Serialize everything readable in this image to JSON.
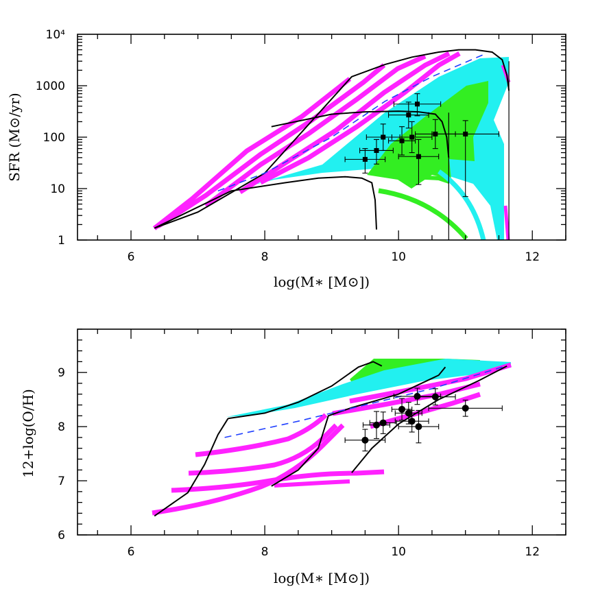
{
  "colors": {
    "magenta": "#ff22ff",
    "cyan": "#22f0f0",
    "green": "#33ee22",
    "blue_dash": "#1f3fff",
    "black": "#000000"
  },
  "chart_data": [
    {
      "type": "scatter",
      "title": "",
      "xlabel": "log(M∗ [M⊙])",
      "ylabel": "SFR (M⊙/yr)",
      "xlim": [
        5.2,
        12.5
      ],
      "ylim": [
        1,
        10000
      ],
      "yscale": "log",
      "xticks": [
        6,
        8,
        10,
        12
      ],
      "xtick_labels": [
        "6",
        "8",
        "10",
        "12"
      ],
      "yticks": [
        1,
        10,
        100,
        1000,
        10000
      ],
      "ytick_labels": [
        "1",
        "10",
        "100",
        "1000",
        "10⁴"
      ],
      "points": [
        {
          "x": 9.5,
          "y": 37,
          "xerr": 0.3,
          "ylo": 20,
          "yhi": 60
        },
        {
          "x": 9.67,
          "y": 55,
          "xerr": 0.25,
          "ylo": 30,
          "yhi": 90
        },
        {
          "x": 9.77,
          "y": 100,
          "xerr": 0.25,
          "ylo": 55,
          "yhi": 180
        },
        {
          "x": 10.05,
          "y": 85,
          "xerr": 0.2,
          "ylo": 45,
          "yhi": 160
        },
        {
          "x": 10.15,
          "y": 270,
          "xerr": 0.3,
          "ylo": 150,
          "yhi": 480
        },
        {
          "x": 10.2,
          "y": 100,
          "xerr": 0.3,
          "ylo": 50,
          "yhi": 200
        },
        {
          "x": 10.28,
          "y": 440,
          "xerr": 0.35,
          "ylo": 260,
          "yhi": 700
        },
        {
          "x": 10.3,
          "y": 42,
          "xerr": 0.3,
          "ylo": 12,
          "yhi": 90
        },
        {
          "x": 10.55,
          "y": 115,
          "xerr": 0.3,
          "ylo": 60,
          "yhi": 220
        },
        {
          "x": 11.0,
          "y": 115,
          "xerr": 0.5,
          "ylo": 7,
          "yhi": 210
        }
      ],
      "series": [
        {
          "name": "black envelope upper",
          "color": "#000000",
          "style": "solid",
          "x": [
            6.35,
            7.0,
            8.0,
            9.3,
            9.8,
            10.2,
            10.6,
            10.9,
            11.15,
            11.4,
            11.55,
            11.62,
            11.65
          ],
          "y": [
            1.7,
            3.5,
            20,
            1500,
            2600,
            3600,
            4500,
            5000,
            5000,
            4500,
            3200,
            1600,
            800
          ]
        },
        {
          "name": "black envelope middle",
          "color": "#000000",
          "style": "solid",
          "x": [
            8.1,
            9.0,
            9.5,
            10.0,
            10.3,
            10.55,
            10.65,
            10.72,
            10.75
          ],
          "y": [
            160,
            280,
            310,
            320,
            310,
            280,
            200,
            100,
            40
          ]
        },
        {
          "name": "black envelope lower",
          "color": "#000000",
          "style": "solid",
          "x": [
            6.35,
            7.5,
            8.3,
            8.8,
            9.2,
            9.45,
            9.6,
            9.65,
            9.67
          ],
          "y": [
            1.7,
            9,
            13,
            16,
            17,
            16,
            13,
            6,
            1.6
          ]
        },
        {
          "name": "model blue dashed",
          "color": "#1f3fff",
          "style": "dashed",
          "x": [
            7.3,
            8.0,
            9.0,
            9.8,
            10.5,
            11.3
          ],
          "y": [
            9,
            20,
            100,
            500,
            1500,
            4200
          ]
        }
      ]
    },
    {
      "type": "scatter",
      "title": "",
      "xlabel": "log(M∗ [M⊙])",
      "ylabel": "12+log(O/H)",
      "xlim": [
        5.2,
        12.5
      ],
      "ylim": [
        6.0,
        9.8
      ],
      "yscale": "linear",
      "xticks": [
        6,
        8,
        10,
        12
      ],
      "xtick_labels": [
        "6",
        "8",
        "10",
        "12"
      ],
      "yticks": [
        6,
        7,
        8,
        9
      ],
      "ytick_labels": [
        "6",
        "7",
        "8",
        "9"
      ],
      "points": [
        {
          "x": 9.5,
          "y": 7.75,
          "xerr": 0.3,
          "yerr": 0.2
        },
        {
          "x": 9.67,
          "y": 8.03,
          "xerr": 0.2,
          "yerr": 0.25
        },
        {
          "x": 9.77,
          "y": 8.07,
          "xerr": 0.2,
          "yerr": 0.2
        },
        {
          "x": 10.05,
          "y": 8.32,
          "xerr": 0.15,
          "yerr": 0.2
        },
        {
          "x": 10.15,
          "y": 8.25,
          "xerr": 0.2,
          "yerr": 0.2
        },
        {
          "x": 10.2,
          "y": 8.1,
          "xerr": 0.25,
          "yerr": 0.2
        },
        {
          "x": 10.28,
          "y": 8.56,
          "xerr": 0.35,
          "yerr": 0.15
        },
        {
          "x": 10.3,
          "y": 8.0,
          "xerr": 0.3,
          "yerr": 0.3
        },
        {
          "x": 10.55,
          "y": 8.55,
          "xerr": 0.3,
          "yerr": 0.15
        },
        {
          "x": 11.0,
          "y": 8.34,
          "xerr": 0.55,
          "yerr": 0.15
        }
      ],
      "series": [
        {
          "name": "black track left",
          "color": "#000000",
          "style": "solid",
          "x": [
            6.35,
            6.85,
            7.1,
            7.3,
            7.45
          ],
          "y": [
            6.35,
            6.78,
            7.3,
            7.85,
            8.15
          ]
        },
        {
          "name": "black track upper",
          "color": "#000000",
          "style": "solid",
          "x": [
            7.45,
            8.0,
            8.5,
            9.0,
            9.4,
            9.62,
            9.75
          ],
          "y": [
            8.15,
            8.25,
            8.45,
            8.75,
            9.1,
            9.2,
            9.12
          ]
        },
        {
          "name": "black track middle",
          "color": "#000000",
          "style": "solid",
          "x": [
            8.1,
            8.5,
            8.8,
            8.95,
            9.3,
            10.0,
            10.6,
            10.7
          ],
          "y": [
            6.9,
            7.2,
            7.6,
            8.2,
            8.35,
            8.6,
            8.95,
            9.1
          ]
        },
        {
          "name": "black track right",
          "color": "#000000",
          "style": "solid",
          "x": [
            9.3,
            9.6,
            10.0,
            10.6,
            11.2,
            11.62
          ],
          "y": [
            7.15,
            7.6,
            8.05,
            8.5,
            8.85,
            9.12
          ]
        },
        {
          "name": "model blue dashed",
          "color": "#1f3fff",
          "style": "dashed",
          "x": [
            7.4,
            8.5,
            9.5,
            10.5,
            11.6
          ],
          "y": [
            7.8,
            8.1,
            8.4,
            8.7,
            9.12
          ]
        }
      ]
    }
  ]
}
